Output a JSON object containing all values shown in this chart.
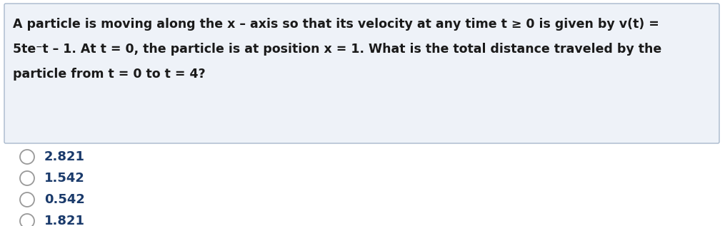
{
  "question_line1": "A particle is moving along the x – axis so that its velocity at any time t ≥ 0 is given by v(t) =",
  "question_line2": "5te⁻t – 1. At t = 0, the particle is at position x = 1. What is the total distance traveled by the",
  "question_line3": "particle from t = 0 to t = 4?",
  "options": [
    "2.821",
    "1.542",
    "0.542",
    "1.821"
  ],
  "text_color": "#1a1a1a",
  "option_color": "#1a3a6b",
  "box_bg": "#eef2f8",
  "box_border": "#a8b8cc",
  "circle_color": "#999999",
  "bg_color": "#ffffff",
  "font_size_question": 12.5,
  "font_size_options": 13.0
}
